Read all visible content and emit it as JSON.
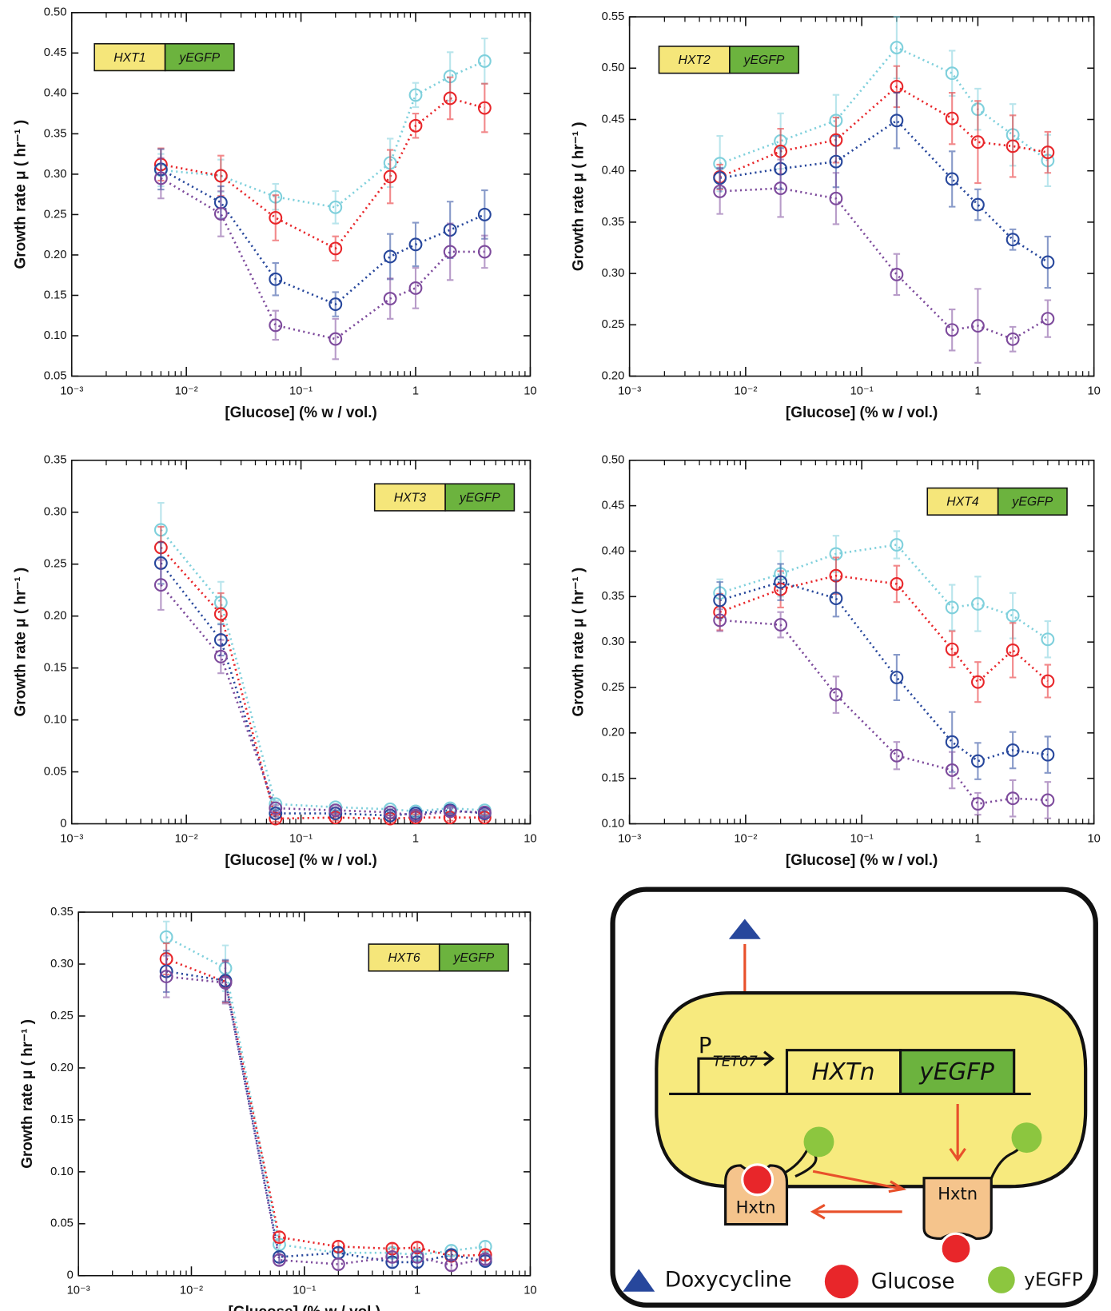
{
  "chart_data": [
    {
      "type": "line",
      "gene": "HXT1",
      "tag": "yEGFP",
      "gene_color": "#f5e67a",
      "tag_color": "#6cb33e",
      "xlabel": "[Glucose] (% w / vol.)",
      "ylabel": "Growth rate μ ( hr⁻¹ )",
      "xscale": "log",
      "xlim": [
        0.001,
        10
      ],
      "xticks": [
        {
          "value": 0.001,
          "label": "10⁻³"
        },
        {
          "value": 0.01,
          "label": "10⁻²"
        },
        {
          "value": 0.1,
          "label": "10⁻¹"
        },
        1,
        10
      ],
      "ylim": [
        0.05,
        0.5
      ],
      "yticks": [
        0.05,
        {
          "value": 0.1,
          "label": "0.10"
        },
        0.15,
        {
          "value": 0.2,
          "label": "0.20"
        },
        0.25,
        {
          "value": 0.3,
          "label": "0.30"
        },
        0.35,
        {
          "value": 0.4,
          "label": "0.40"
        },
        0.45,
        {
          "value": 0.5,
          "label": "0.50"
        }
      ],
      "x": [
        0.006,
        0.02,
        0.06,
        0.2,
        0.6,
        1,
        2,
        4
      ],
      "series": [
        {
          "color": "#7fd0dc",
          "values": [
            0.305,
            0.298,
            0.272,
            0.259,
            0.314,
            0.398,
            0.421,
            0.44
          ],
          "errors": [
            0.02,
            0.02,
            0.016,
            0.02,
            0.03,
            0.015,
            0.03,
            0.028
          ]
        },
        {
          "color": "#e8262a",
          "values": [
            0.312,
            0.298,
            0.246,
            0.208,
            0.297,
            0.36,
            0.394,
            0.382
          ],
          "errors": [
            0.02,
            0.025,
            0.028,
            0.015,
            0.033,
            0.015,
            0.026,
            0.03
          ]
        },
        {
          "color": "#27479c",
          "values": [
            0.306,
            0.265,
            0.17,
            0.139,
            0.198,
            0.213,
            0.231,
            0.25
          ],
          "errors": [
            0.025,
            0.02,
            0.02,
            0.015,
            0.028,
            0.027,
            0.035,
            0.03
          ]
        },
        {
          "color": "#7d4a9c",
          "values": [
            0.295,
            0.251,
            0.113,
            0.096,
            0.146,
            0.159,
            0.204,
            0.204
          ],
          "errors": [
            0.025,
            0.028,
            0.018,
            0.025,
            0.025,
            0.025,
            0.035,
            0.02
          ]
        }
      ]
    },
    {
      "type": "line",
      "gene": "HXT2",
      "tag": "yEGFP",
      "gene_color": "#f5e67a",
      "tag_color": "#6cb33e",
      "xlabel": "[Glucose] (% w / vol.)",
      "ylabel": "Growth rate μ ( hr⁻¹ )",
      "xscale": "log",
      "xlim": [
        0.001,
        10
      ],
      "xticks": [
        {
          "value": 0.001,
          "label": "10⁻³"
        },
        {
          "value": 0.01,
          "label": "10⁻²"
        },
        {
          "value": 0.1,
          "label": "10⁻¹"
        },
        1,
        10
      ],
      "ylim": [
        0.2,
        0.55
      ],
      "yticks": [
        {
          "value": 0.2,
          "label": "0.20"
        },
        0.25,
        {
          "value": 0.3,
          "label": "0.30"
        },
        0.35,
        {
          "value": 0.4,
          "label": "0.40"
        },
        0.45,
        {
          "value": 0.5,
          "label": "0.50"
        },
        0.55
      ],
      "x": [
        0.006,
        0.02,
        0.06,
        0.2,
        0.6,
        1,
        2,
        4
      ],
      "series": [
        {
          "color": "#7fd0dc",
          "values": [
            0.407,
            0.429,
            0.449,
            0.52,
            0.495,
            0.46,
            0.435,
            0.41
          ],
          "errors": [
            0.027,
            0.027,
            0.025,
            0.03,
            0.022,
            0.02,
            0.03,
            0.025
          ]
        },
        {
          "color": "#e8262a",
          "values": [
            0.394,
            0.419,
            0.43,
            0.482,
            0.451,
            0.428,
            0.424,
            0.418
          ],
          "errors": [
            0.012,
            0.022,
            0.022,
            0.02,
            0.025,
            0.04,
            0.03,
            0.02
          ]
        },
        {
          "color": "#27479c",
          "values": [
            0.393,
            0.402,
            0.409,
            0.449,
            0.392,
            0.367,
            0.333,
            0.311
          ],
          "errors": [
            0.01,
            0.02,
            0.025,
            0.027,
            0.027,
            0.015,
            0.01,
            0.025
          ]
        },
        {
          "color": "#7d4a9c",
          "values": [
            0.38,
            0.383,
            0.373,
            0.299,
            0.245,
            0.249,
            0.236,
            0.256
          ],
          "errors": [
            0.022,
            0.028,
            0.025,
            0.02,
            0.02,
            0.036,
            0.012,
            0.018
          ]
        }
      ]
    },
    {
      "type": "line",
      "gene": "HXT3",
      "tag": "yEGFP",
      "gene_color": "#f5e67a",
      "tag_color": "#6cb33e",
      "xlabel": "[Glucose] (% w / vol.)",
      "ylabel": "Growth rate μ ( hr⁻¹ )",
      "xscale": "log",
      "xlim": [
        0.001,
        10
      ],
      "xticks": [
        {
          "value": 0.001,
          "label": "10⁻³"
        },
        {
          "value": 0.01,
          "label": "10⁻²"
        },
        {
          "value": 0.1,
          "label": "10⁻¹"
        },
        1,
        10
      ],
      "ylim": [
        0,
        0.35
      ],
      "yticks": [
        0,
        0.05,
        {
          "value": 0.1,
          "label": "0.10"
        },
        0.15,
        {
          "value": 0.2,
          "label": "0.20"
        },
        0.25,
        {
          "value": 0.3,
          "label": "0.30"
        },
        0.35
      ],
      "x": [
        0.006,
        0.02,
        0.06,
        0.2,
        0.6,
        1,
        2,
        4
      ],
      "series": [
        {
          "color": "#7fd0dc",
          "values": [
            0.283,
            0.213,
            0.019,
            0.016,
            0.014,
            0.012,
            0.015,
            0.013
          ],
          "errors": [
            0.026,
            0.02,
            0.003,
            0.003,
            0.003,
            0.003,
            0.003,
            0.003
          ]
        },
        {
          "color": "#e8262a",
          "values": [
            0.266,
            0.202,
            0.005,
            0.006,
            0.005,
            0.006,
            0.006,
            0.006
          ],
          "errors": [
            0.02,
            0.02,
            0.003,
            0.003,
            0.003,
            0.003,
            0.003,
            0.003
          ]
        },
        {
          "color": "#27479c",
          "values": [
            0.251,
            0.177,
            0.01,
            0.01,
            0.008,
            0.01,
            0.013,
            0.01
          ],
          "errors": [
            0.02,
            0.015,
            0.003,
            0.003,
            0.003,
            0.003,
            0.003,
            0.003
          ]
        },
        {
          "color": "#7d4a9c",
          "values": [
            0.23,
            0.161,
            0.015,
            0.013,
            0.011,
            0.008,
            0.012,
            0.011
          ],
          "errors": [
            0.024,
            0.016,
            0.003,
            0.003,
            0.003,
            0.003,
            0.003,
            0.003
          ]
        }
      ]
    },
    {
      "type": "line",
      "gene": "HXT4",
      "tag": "yEGFP",
      "gene_color": "#f5e67a",
      "tag_color": "#6cb33e",
      "xlabel": "[Glucose] (% w / vol.)",
      "ylabel": "Growth rate μ ( hr⁻¹ )",
      "xscale": "log",
      "xlim": [
        0.001,
        10
      ],
      "xticks": [
        {
          "value": 0.001,
          "label": "10⁻³"
        },
        {
          "value": 0.01,
          "label": "10⁻²"
        },
        {
          "value": 0.1,
          "label": "10⁻¹"
        },
        1,
        10
      ],
      "ylim": [
        0.1,
        0.5
      ],
      "yticks": [
        {
          "value": 0.1,
          "label": "0.10"
        },
        0.15,
        {
          "value": 0.2,
          "label": "0.20"
        },
        0.25,
        {
          "value": 0.3,
          "label": "0.30"
        },
        0.35,
        {
          "value": 0.4,
          "label": "0.40"
        },
        0.45,
        {
          "value": 0.5,
          "label": "0.50"
        }
      ],
      "x": [
        0.006,
        0.02,
        0.06,
        0.2,
        0.6,
        1,
        2,
        4
      ],
      "series": [
        {
          "color": "#7fd0dc",
          "values": [
            0.354,
            0.375,
            0.397,
            0.407,
            0.338,
            0.342,
            0.329,
            0.303
          ],
          "errors": [
            0.015,
            0.025,
            0.02,
            0.015,
            0.025,
            0.03,
            0.025,
            0.02
          ]
        },
        {
          "color": "#e8262a",
          "values": [
            0.333,
            0.358,
            0.373,
            0.364,
            0.292,
            0.256,
            0.291,
            0.257
          ],
          "errors": [
            0.02,
            0.02,
            0.02,
            0.02,
            0.02,
            0.022,
            0.03,
            0.018
          ]
        },
        {
          "color": "#27479c",
          "values": [
            0.346,
            0.366,
            0.348,
            0.261,
            0.19,
            0.169,
            0.181,
            0.176
          ],
          "errors": [
            0.02,
            0.02,
            0.02,
            0.025,
            0.033,
            0.02,
            0.02,
            0.02
          ]
        },
        {
          "color": "#7d4a9c",
          "values": [
            0.324,
            0.319,
            0.242,
            0.175,
            0.159,
            0.122,
            0.128,
            0.126
          ],
          "errors": [
            0.012,
            0.014,
            0.02,
            0.015,
            0.02,
            0.012,
            0.02,
            0.02
          ]
        }
      ]
    },
    {
      "type": "line",
      "gene": "HXT6",
      "tag": "yEGFP",
      "gene_color": "#f5e67a",
      "tag_color": "#6cb33e",
      "xlabel": "[Glucose] (% w / vol.)",
      "ylabel": "Growth rate μ ( hr⁻¹ )",
      "xscale": "log",
      "xlim": [
        0.001,
        10
      ],
      "xticks": [
        {
          "value": 0.001,
          "label": "10⁻³"
        },
        {
          "value": 0.01,
          "label": "10⁻²"
        },
        {
          "value": 0.1,
          "label": "10⁻¹"
        },
        1,
        10
      ],
      "ylim": [
        0,
        0.35
      ],
      "yticks": [
        0,
        0.05,
        {
          "value": 0.1,
          "label": "0.10"
        },
        0.15,
        {
          "value": 0.2,
          "label": "0.20"
        },
        0.25,
        {
          "value": 0.3,
          "label": "0.30"
        },
        0.35
      ],
      "x": [
        0.006,
        0.02,
        0.06,
        0.2,
        0.6,
        1,
        2,
        4
      ],
      "series": [
        {
          "color": "#7fd0dc",
          "values": [
            0.326,
            0.296,
            0.03,
            0.022,
            0.022,
            0.02,
            0.024,
            0.028
          ],
          "errors": [
            0.015,
            0.022,
            0.005,
            0.005,
            0.005,
            0.005,
            0.005,
            0.005
          ]
        },
        {
          "color": "#e8262a",
          "values": [
            0.305,
            0.283,
            0.037,
            0.028,
            0.026,
            0.027,
            0.019,
            0.02
          ],
          "errors": [
            0.015,
            0.02,
            0.005,
            0.005,
            0.005,
            0.005,
            0.005,
            0.005
          ]
        },
        {
          "color": "#27479c",
          "values": [
            0.293,
            0.284,
            0.018,
            0.022,
            0.013,
            0.013,
            0.02,
            0.014
          ],
          "errors": [
            0.02,
            0.02,
            0.005,
            0.005,
            0.005,
            0.005,
            0.005,
            0.005
          ]
        },
        {
          "color": "#7d4a9c",
          "values": [
            0.288,
            0.282,
            0.015,
            0.011,
            0.018,
            0.018,
            0.01,
            0.016
          ],
          "errors": [
            0.02,
            0.02,
            0.005,
            0.005,
            0.005,
            0.005,
            0.005,
            0.005
          ]
        }
      ]
    }
  ],
  "diagram": {
    "promoter": "P",
    "promoter_sub": "TET07",
    "gene": "HXTn",
    "tag": "yEGFP",
    "transporter": [
      "Hxtn",
      "Hxtn"
    ],
    "legend": [
      "Doxycycline",
      "Glucose",
      "yEGFP"
    ]
  }
}
